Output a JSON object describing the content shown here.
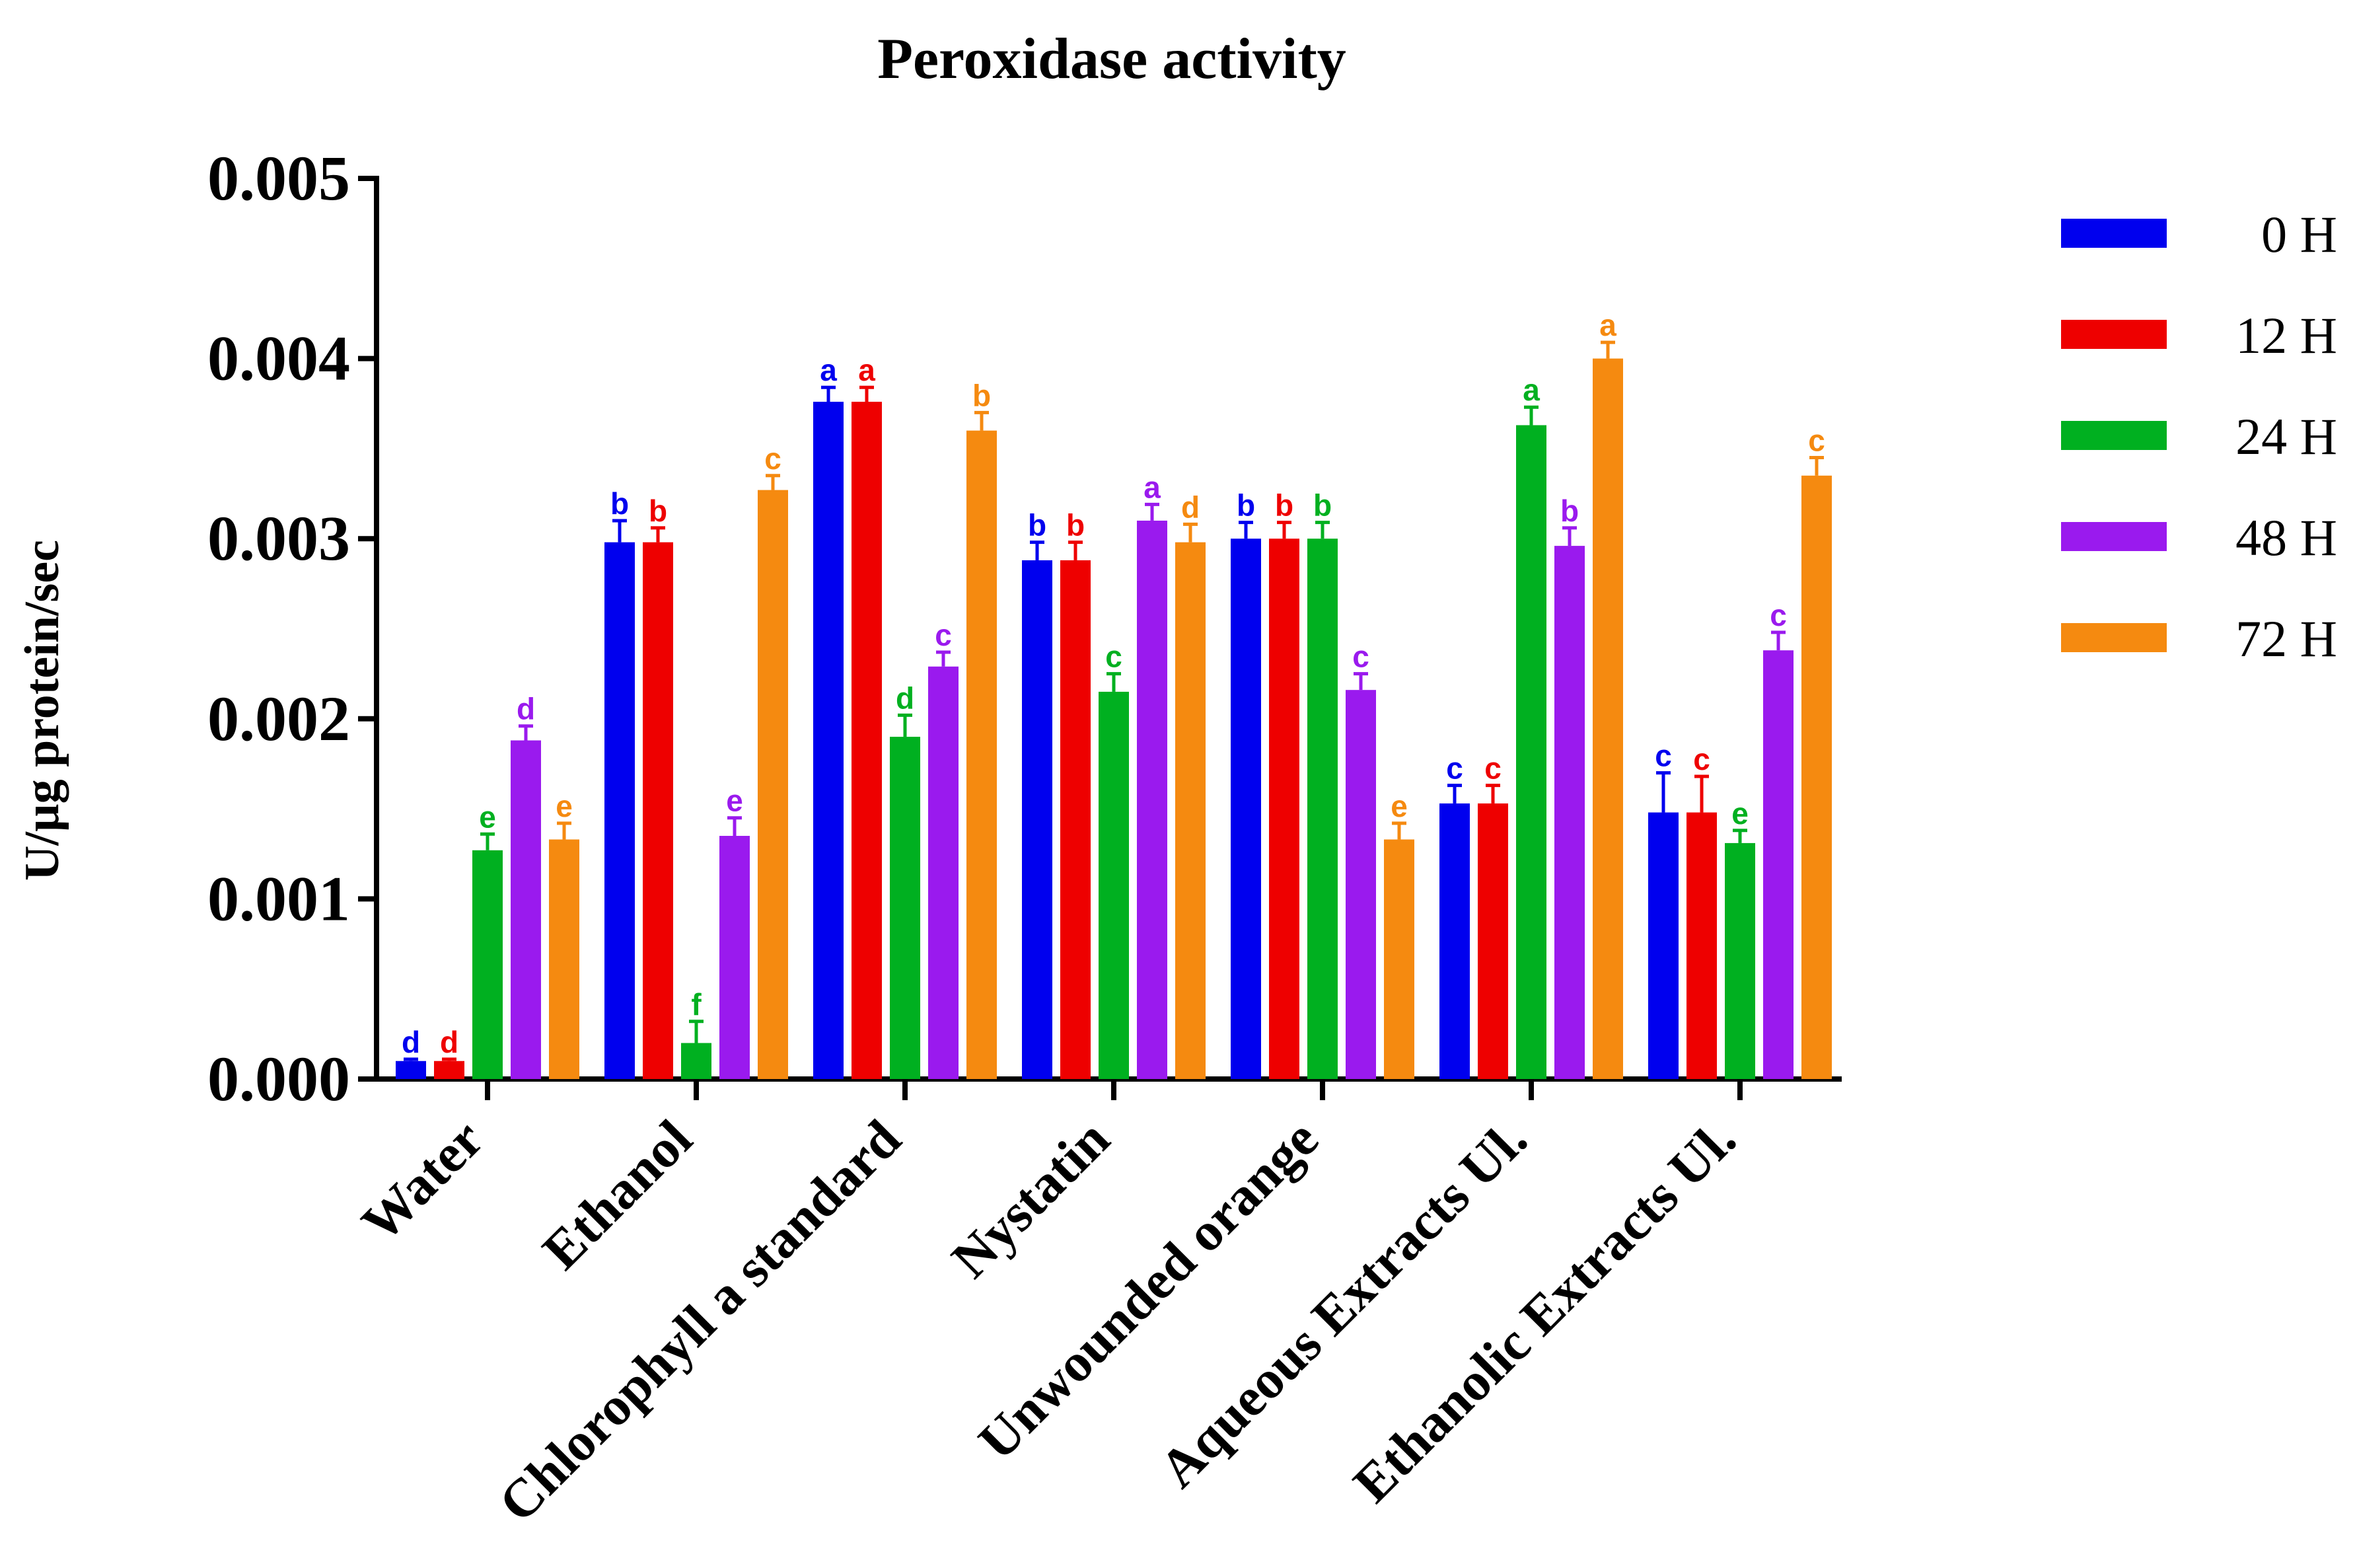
{
  "chart_data": {
    "type": "bar",
    "title": "Peroxidase activity",
    "xlabel": "",
    "ylabel": "U/µg protein/sec",
    "ylim": [
      0,
      0.005
    ],
    "yticks": [
      "0.000",
      "0.001",
      "0.002",
      "0.003",
      "0.004",
      "0.005"
    ],
    "legend_position": "right",
    "categories": [
      "Water",
      "Ethanol",
      "Chlorophyll a standard",
      "Nystatin",
      "Unwounded orange",
      "Aqueous Extracts Ul.",
      "Ethanolic Extracts Ul."
    ],
    "series": [
      {
        "name": "0 H",
        "color": "#0000ee",
        "values": [
          0.0001,
          0.00298,
          0.00376,
          0.00288,
          0.003,
          0.00153,
          0.00148
        ],
        "errors": [
          1e-05,
          0.00012,
          8e-05,
          0.0001,
          9e-05,
          0.0001,
          0.00022
        ],
        "letters": [
          "d",
          "b",
          "a",
          "b",
          "b",
          "c",
          "c"
        ]
      },
      {
        "name": "12 H",
        "color": "#ee0000",
        "values": [
          0.0001,
          0.00298,
          0.00376,
          0.00288,
          0.003,
          0.00153,
          0.00148
        ],
        "errors": [
          1e-05,
          8e-05,
          8e-05,
          0.0001,
          9e-05,
          0.0001,
          0.0002
        ],
        "letters": [
          "d",
          "b",
          "a",
          "b",
          "b",
          "c",
          "c"
        ]
      },
      {
        "name": "24 H",
        "color": "#00b020",
        "values": [
          0.00127,
          0.0002,
          0.0019,
          0.00215,
          0.003,
          0.00363,
          0.00131
        ],
        "errors": [
          9e-05,
          0.00012,
          0.00012,
          0.0001,
          9e-05,
          0.0001,
          7e-05
        ],
        "letters": [
          "e",
          "f",
          "d",
          "c",
          "b",
          "a",
          "e"
        ]
      },
      {
        "name": "48 H",
        "color": "#9a1aee",
        "values": [
          0.00188,
          0.00135,
          0.00229,
          0.0031,
          0.00216,
          0.00296,
          0.00238
        ],
        "errors": [
          8e-05,
          0.0001,
          8e-05,
          9e-05,
          9e-05,
          0.0001,
          0.0001
        ],
        "letters": [
          "d",
          "e",
          "c",
          "a",
          "c",
          "b",
          "c"
        ]
      },
      {
        "name": "72 H",
        "color": "#f58a10",
        "values": [
          0.00133,
          0.00327,
          0.0036,
          0.00298,
          0.00133,
          0.004,
          0.00335
        ],
        "errors": [
          9e-05,
          8e-05,
          0.0001,
          0.0001,
          9e-05,
          9e-05,
          0.0001
        ],
        "letters": [
          "e",
          "c",
          "b",
          "d",
          "e",
          "a",
          "c"
        ]
      }
    ]
  }
}
